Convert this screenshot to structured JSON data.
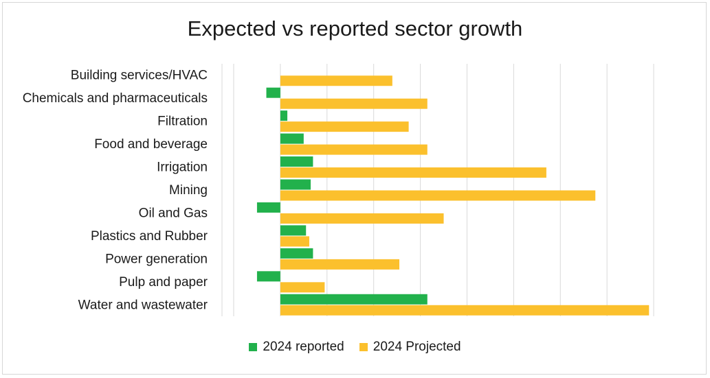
{
  "chart_data": {
    "type": "bar",
    "orientation": "horizontal",
    "title": "Expected vs reported sector growth",
    "categories": [
      "Building services/HVAC",
      "Chemicals and pharmaceuticals",
      "Filtration",
      "Food and beverage",
      "Irrigation",
      "Mining",
      "Oil and Gas",
      "Plastics and Rubber",
      "Power generation",
      "Pulp and paper",
      "Water and wastewater"
    ],
    "series": [
      {
        "name": "2024 reported",
        "color": "#22b14c",
        "values": [
          0,
          -0.3,
          0.15,
          0.5,
          0.7,
          0.65,
          -0.5,
          0.55,
          0.7,
          -0.5,
          3.15
        ]
      },
      {
        "name": "2024 Projected",
        "color": "#fbc02d",
        "values": [
          2.4,
          3.15,
          2.75,
          3.15,
          5.7,
          6.75,
          3.5,
          0.62,
          2.55,
          0.95,
          7.9
        ]
      }
    ],
    "xlim": [
      -1.25,
      8.75
    ],
    "grid": true,
    "legend_position": "bottom"
  }
}
